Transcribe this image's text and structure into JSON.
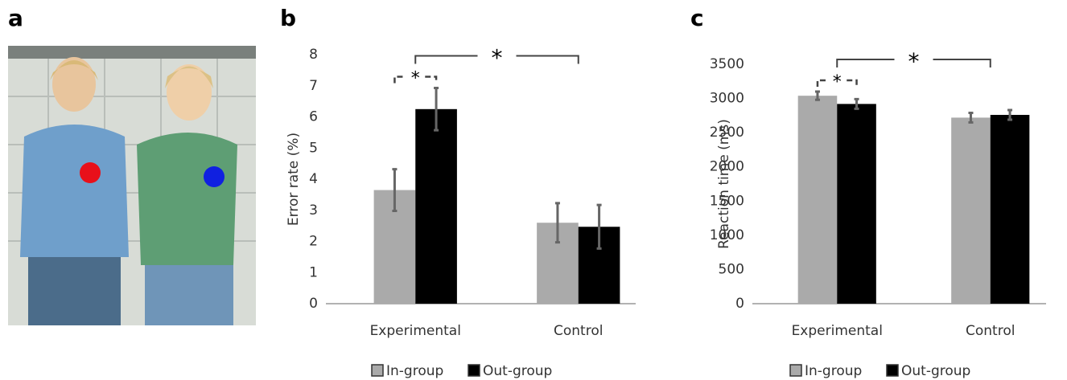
{
  "panel_labels": [
    "a",
    "b",
    "c"
  ],
  "chart_data": [
    {
      "type": "bar",
      "y_label": "Error rate (%)",
      "categories": [
        "Experimental",
        "Control"
      ],
      "series": [
        {
          "name": "In-group",
          "color": "#aaaaaa",
          "values": [
            3.65,
            2.6
          ],
          "errors": [
            0.67,
            0.63
          ]
        },
        {
          "name": "Out-group",
          "color": "#000000",
          "values": [
            6.25,
            2.47
          ],
          "errors": [
            0.68,
            0.7
          ]
        }
      ],
      "ylim": [
        0,
        8
      ],
      "yticks": [
        0,
        1,
        2,
        3,
        4,
        5,
        6,
        7,
        8
      ],
      "grid": false,
      "annotations": [
        "*",
        "*"
      ]
    },
    {
      "type": "bar",
      "y_label": "Reaction time (ms)",
      "categories": [
        "Experimental",
        "Control"
      ],
      "series": [
        {
          "name": "In-group",
          "color": "#aaaaaa",
          "values": [
            3040,
            2720
          ],
          "errors": [
            60,
            70
          ]
        },
        {
          "name": "Out-group",
          "color": "#000000",
          "values": [
            2920,
            2760
          ],
          "errors": [
            70,
            70
          ]
        }
      ],
      "ylim": [
        0,
        3500
      ],
      "yticks": [
        0,
        500,
        1000,
        1500,
        2000,
        2500,
        3000,
        3500
      ],
      "grid": false,
      "annotations": [
        "*",
        "*"
      ]
    }
  ]
}
